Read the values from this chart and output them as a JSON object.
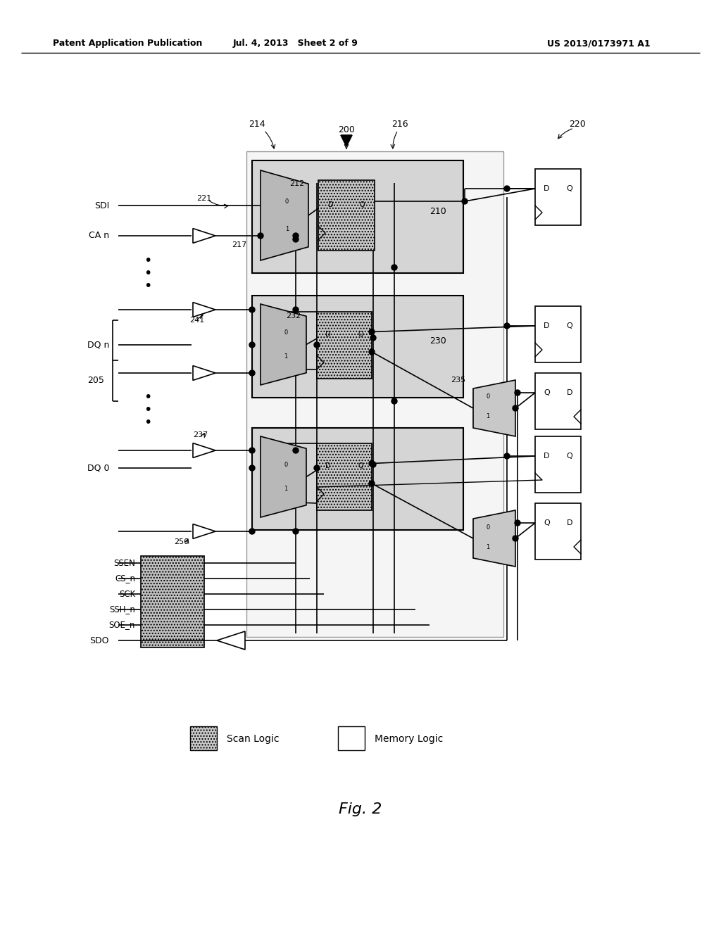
{
  "header_left": "Patent Application Publication",
  "header_mid": "Jul. 4, 2013   Sheet 2 of 9",
  "header_right": "US 2013/0173971 A1",
  "fig_label": "Fig. 2",
  "bg_color": "#ffffff"
}
